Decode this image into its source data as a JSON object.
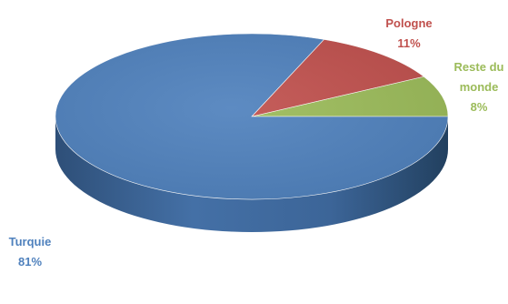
{
  "chart_data": {
    "type": "pie",
    "style": "3d",
    "slices": [
      {
        "label": "Turquie",
        "value": 81,
        "value_label": "81%",
        "color": "#4F81BD"
      },
      {
        "label": "Pologne",
        "value": 11,
        "value_label": "11%",
        "color": "#C0504D"
      },
      {
        "label": "Reste du monde",
        "value": 8,
        "value_label": "8%",
        "color": "#9BBB59"
      }
    ]
  },
  "labels": {
    "turquie": {
      "lines": [
        "Turquie",
        "81%"
      ]
    },
    "pologne": {
      "lines": [
        "Pologne",
        "11%"
      ]
    },
    "reste": {
      "lines": [
        "Reste du",
        "monde",
        "8%"
      ]
    }
  }
}
